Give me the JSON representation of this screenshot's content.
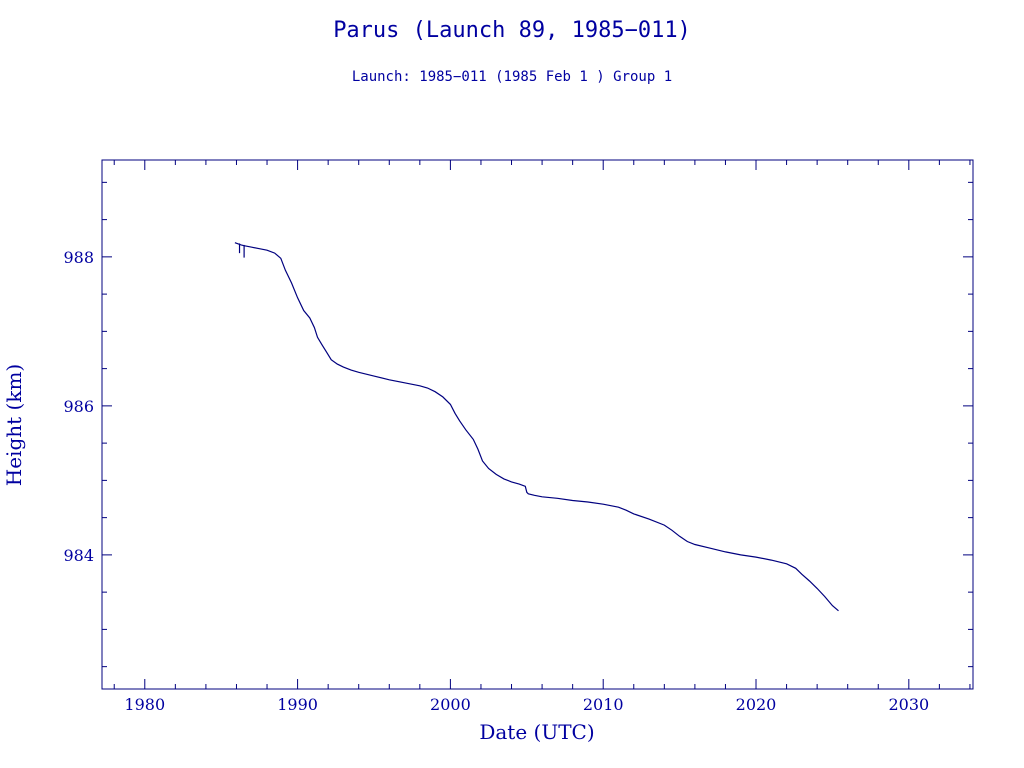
{
  "chart_data": {
    "type": "line",
    "title": "Parus (Launch 89, 1985−011)",
    "subtitle": "Launch: 1985−011  (1985 Feb  1 )  Group 1",
    "xlabel": "Date (UTC)",
    "ylabel": "Height (km)",
    "xlim": [
      1977.2,
      2034.2
    ],
    "ylim": [
      982.2,
      989.3
    ],
    "x_major_ticks": [
      1980,
      1990,
      2000,
      2010,
      2020,
      2030
    ],
    "x_tick_labels": [
      "1980",
      "1990",
      "2000",
      "2010",
      "2020",
      "2030"
    ],
    "y_major_ticks": [
      984,
      986,
      988
    ],
    "y_tick_labels": [
      "984",
      "986",
      "988"
    ],
    "grid": false,
    "legend": "none",
    "series": [
      {
        "color": "#00007f",
        "x": [
          1985.9,
          1986.3,
          1986.5,
          1987.0,
          1987.5,
          1988.0,
          1988.5,
          1988.9,
          1989.2,
          1989.6,
          1990.0,
          1990.4,
          1990.8,
          1991.1,
          1991.3,
          1991.6,
          1991.9,
          1992.2,
          1992.6,
          1993.0,
          1993.5,
          1994.0,
          1995.0,
          1996.0,
          1997.0,
          1998.0,
          1998.5,
          1999.0,
          1999.5,
          2000.0,
          2000.3,
          2000.6,
          2001.0,
          2001.5,
          2001.8,
          2002.1,
          2002.5,
          2003.0,
          2003.5,
          2004.0,
          2004.5,
          2004.9,
          2005.0,
          2005.1,
          2005.5,
          2006.0,
          2007.0,
          2008.0,
          2009.0,
          2010.0,
          2011.0,
          2011.5,
          2012.0,
          2013.0,
          2014.0,
          2014.5,
          2015.0,
          2015.5,
          2016.0,
          2017.0,
          2018.0,
          2019.0,
          2020.0,
          2021.0,
          2022.0,
          2022.6,
          2023.0,
          2023.5,
          2024.0,
          2024.5,
          2025.0,
          2025.4
        ],
        "y": [
          988.19,
          988.16,
          988.15,
          988.13,
          988.11,
          988.09,
          988.05,
          987.98,
          987.82,
          987.65,
          987.45,
          987.28,
          987.18,
          987.05,
          986.92,
          986.82,
          986.72,
          986.62,
          986.56,
          986.52,
          986.48,
          986.45,
          986.4,
          986.35,
          986.31,
          986.27,
          986.24,
          986.19,
          986.12,
          986.02,
          985.9,
          985.8,
          985.68,
          985.55,
          985.42,
          985.26,
          985.16,
          985.08,
          985.02,
          984.98,
          984.95,
          984.92,
          984.84,
          984.82,
          984.8,
          984.78,
          984.76,
          984.73,
          984.71,
          984.68,
          984.64,
          984.6,
          984.55,
          984.48,
          984.4,
          984.33,
          984.25,
          984.18,
          984.14,
          984.09,
          984.04,
          984.0,
          983.97,
          983.93,
          983.88,
          983.82,
          983.74,
          983.65,
          983.55,
          983.44,
          983.32,
          983.25
        ]
      }
    ],
    "spikes": [
      {
        "x": 1986.2,
        "y_from": 988.18,
        "y_to": 988.05
      },
      {
        "x": 1986.5,
        "y_from": 988.16,
        "y_to": 987.99
      }
    ]
  }
}
